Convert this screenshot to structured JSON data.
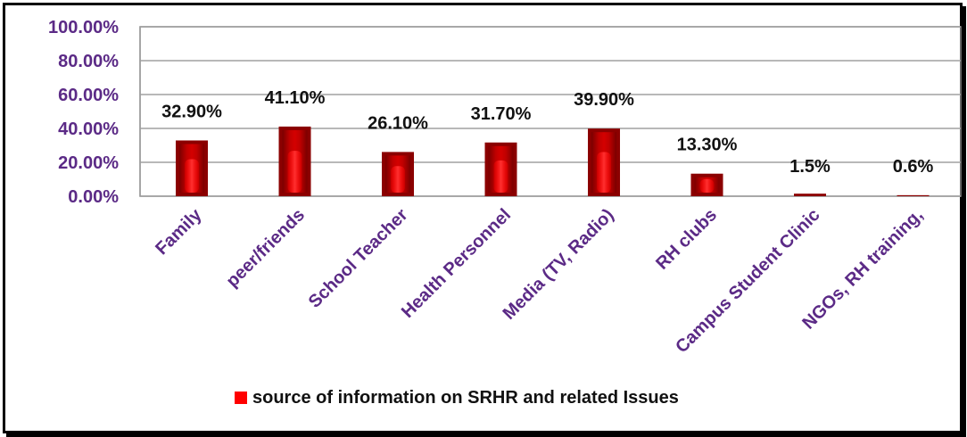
{
  "chart_data": {
    "type": "bar",
    "categories": [
      "Family",
      "peer/friends",
      "School Teacher",
      "Health Personnel",
      "Media (TV, Radio)",
      "RH clubs",
      "Campus Student Clinic",
      "NGOs, RH training,"
    ],
    "series": [
      {
        "name": "source of information on SRHR and related Issues",
        "values": [
          32.9,
          41.1,
          26.1,
          31.7,
          39.9,
          13.3,
          1.5,
          0.6
        ],
        "data_labels": [
          "32.90%",
          "41.10%",
          "26.10%",
          "31.70%",
          "39.90%",
          "13.30%",
          "1.5%",
          "0.6%"
        ]
      }
    ],
    "y_ticks": [
      "0.00%",
      "20.00%",
      "40.00%",
      "60.00%",
      "80.00%",
      "100.00%"
    ],
    "ylim": [
      0,
      100
    ],
    "grid": true,
    "legend_position": "bottom",
    "colors": {
      "bar_dark": "#8b0000",
      "bar_mid": "#c00000",
      "bar_light": "#ff2020",
      "axis_text": "#5b2a86",
      "label_text": "#111111",
      "grid": "#a0a0a0"
    }
  }
}
